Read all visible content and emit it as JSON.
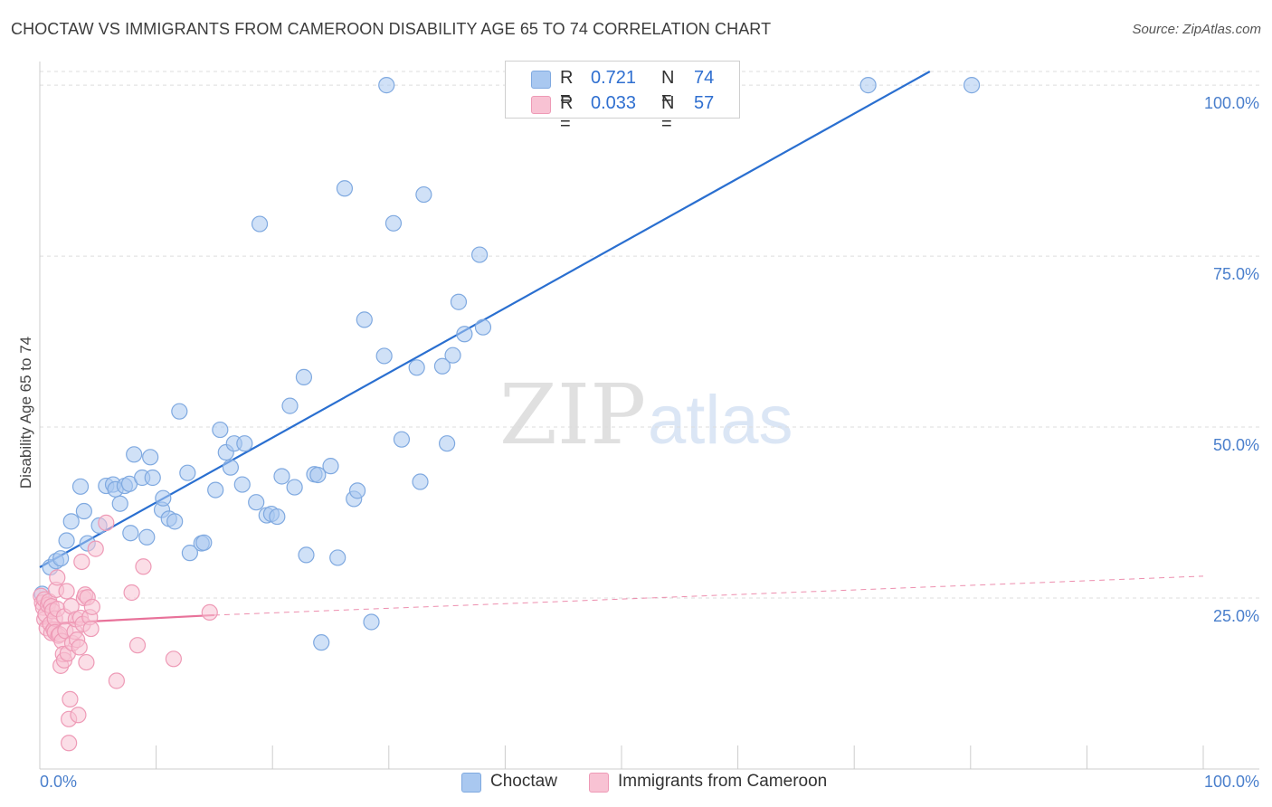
{
  "title": "CHOCTAW VS IMMIGRANTS FROM CAMEROON DISABILITY AGE 65 TO 74 CORRELATION CHART",
  "source": "Source: ZipAtlas.com",
  "watermark": {
    "part1": "ZIP",
    "part2": "atlas"
  },
  "legend": {
    "r_label": "R =",
    "n_label": "N =",
    "series": [
      {
        "name": "Choctaw",
        "r": "0.721",
        "n": "74",
        "fill": "#a9c8f0",
        "stroke": "#7fa9e0"
      },
      {
        "name": "Immigrants from Cameroon",
        "r": "0.033",
        "n": "57",
        "fill": "#f8c2d3",
        "stroke": "#ee9ab6"
      }
    ]
  },
  "colors": {
    "blue_line": "#2a6fd0",
    "pink_line": "#e8729a",
    "tick_text": "#4a7fcc",
    "grid": "#dddddd"
  },
  "chart_data": {
    "type": "scatter",
    "title": "CHOCTAW VS IMMIGRANTS FROM CAMEROON DISABILITY AGE 65 TO 74 CORRELATION CHART",
    "ylabel": "Disability Age 65 to 74",
    "xlabel": "",
    "xlim": [
      0,
      100
    ],
    "ylim": [
      0,
      102
    ],
    "x_tick_labels": [
      "0.0%",
      "100.0%"
    ],
    "y_ticks": [
      25,
      50,
      75,
      100
    ],
    "y_tick_labels": [
      "25.0%",
      "50.0%",
      "75.0%",
      "100.0%"
    ],
    "series": [
      {
        "name": "Choctaw",
        "trend": {
          "x0": 0,
          "y0": 29.5,
          "x1": 76.5,
          "y1": 102,
          "dashed_extension": false
        },
        "points": [
          [
            0.2,
            25.6
          ],
          [
            0.9,
            29.5
          ],
          [
            1.4,
            30.4
          ],
          [
            1.8,
            30.8
          ],
          [
            2.3,
            33.4
          ],
          [
            2.7,
            36.2
          ],
          [
            3.5,
            41.3
          ],
          [
            3.8,
            37.7
          ],
          [
            4.1,
            33.0
          ],
          [
            5.1,
            35.6
          ],
          [
            5.7,
            41.4
          ],
          [
            6.3,
            41.6
          ],
          [
            6.5,
            40.9
          ],
          [
            6.9,
            38.8
          ],
          [
            7.3,
            41.4
          ],
          [
            7.7,
            41.7
          ],
          [
            7.8,
            34.5
          ],
          [
            8.1,
            46.0
          ],
          [
            8.8,
            42.6
          ],
          [
            9.2,
            33.9
          ],
          [
            9.5,
            45.6
          ],
          [
            9.7,
            42.6
          ],
          [
            10.5,
            37.9
          ],
          [
            10.6,
            39.6
          ],
          [
            11.1,
            36.6
          ],
          [
            11.6,
            36.2
          ],
          [
            12.0,
            52.3
          ],
          [
            12.7,
            43.3
          ],
          [
            12.9,
            31.6
          ],
          [
            13.9,
            33.0
          ],
          [
            14.1,
            33.1
          ],
          [
            15.1,
            40.8
          ],
          [
            15.5,
            49.6
          ],
          [
            16.0,
            46.3
          ],
          [
            16.4,
            44.1
          ],
          [
            16.7,
            47.6
          ],
          [
            17.4,
            41.6
          ],
          [
            17.6,
            47.6
          ],
          [
            18.6,
            39.0
          ],
          [
            18.9,
            79.7
          ],
          [
            19.5,
            37.1
          ],
          [
            19.9,
            37.3
          ],
          [
            20.4,
            36.9
          ],
          [
            20.8,
            42.8
          ],
          [
            21.5,
            53.1
          ],
          [
            21.9,
            41.2
          ],
          [
            22.7,
            57.3
          ],
          [
            22.9,
            31.3
          ],
          [
            23.6,
            43.1
          ],
          [
            23.9,
            43.0
          ],
          [
            25.0,
            44.3
          ],
          [
            25.6,
            30.9
          ],
          [
            26.2,
            84.9
          ],
          [
            27.0,
            39.5
          ],
          [
            27.3,
            40.7
          ],
          [
            27.9,
            65.7
          ],
          [
            28.5,
            21.5
          ],
          [
            29.6,
            60.4
          ],
          [
            29.8,
            100.0
          ],
          [
            30.4,
            79.8
          ],
          [
            31.1,
            48.2
          ],
          [
            32.4,
            58.7
          ],
          [
            32.7,
            42.0
          ],
          [
            33.0,
            84.0
          ],
          [
            34.6,
            58.9
          ],
          [
            35.0,
            47.6
          ],
          [
            35.5,
            60.5
          ],
          [
            36.0,
            68.3
          ],
          [
            36.5,
            63.6
          ],
          [
            37.8,
            75.2
          ],
          [
            38.1,
            64.6
          ],
          [
            71.2,
            100.0
          ],
          [
            80.1,
            100.0
          ],
          [
            24.2,
            18.5
          ]
        ]
      },
      {
        "name": "Immigrants from Cameroon",
        "trend": {
          "x0": 0,
          "y0": 21.2,
          "x1": 15.0,
          "y1": 22.5,
          "dashed_extension": true,
          "x_end": 100,
          "y_end": 28.2
        },
        "points": [
          [
            0.1,
            25.3
          ],
          [
            0.2,
            24.3
          ],
          [
            0.3,
            23.6
          ],
          [
            0.4,
            24.8
          ],
          [
            0.4,
            21.9
          ],
          [
            0.5,
            22.6
          ],
          [
            0.6,
            20.6
          ],
          [
            0.7,
            24.0
          ],
          [
            0.8,
            24.5
          ],
          [
            0.9,
            21.2
          ],
          [
            1.0,
            19.9
          ],
          [
            1.0,
            23.8
          ],
          [
            1.1,
            23.1
          ],
          [
            1.2,
            20.4
          ],
          [
            1.3,
            22.0
          ],
          [
            1.3,
            20.0
          ],
          [
            1.4,
            26.2
          ],
          [
            1.5,
            23.4
          ],
          [
            1.5,
            28.0
          ],
          [
            1.6,
            19.5
          ],
          [
            1.7,
            19.7
          ],
          [
            1.8,
            15.1
          ],
          [
            1.9,
            18.7
          ],
          [
            2.0,
            16.8
          ],
          [
            2.1,
            22.3
          ],
          [
            2.1,
            15.9
          ],
          [
            2.2,
            20.2
          ],
          [
            2.3,
            26.0
          ],
          [
            2.4,
            16.9
          ],
          [
            2.5,
            3.8
          ],
          [
            2.5,
            7.3
          ],
          [
            2.6,
            10.2
          ],
          [
            2.7,
            23.8
          ],
          [
            2.8,
            18.4
          ],
          [
            3.0,
            20.1
          ],
          [
            3.1,
            21.9
          ],
          [
            3.2,
            18.9
          ],
          [
            3.3,
            7.9
          ],
          [
            3.4,
            17.8
          ],
          [
            3.5,
            22.1
          ],
          [
            3.6,
            30.3
          ],
          [
            3.7,
            21.2
          ],
          [
            3.8,
            25.0
          ],
          [
            3.9,
            25.5
          ],
          [
            4.0,
            15.6
          ],
          [
            4.1,
            25.1
          ],
          [
            4.3,
            22.2
          ],
          [
            4.4,
            20.5
          ],
          [
            4.5,
            23.7
          ],
          [
            4.8,
            32.2
          ],
          [
            5.7,
            36.0
          ],
          [
            6.6,
            12.9
          ],
          [
            7.9,
            25.8
          ],
          [
            8.4,
            18.1
          ],
          [
            8.9,
            29.6
          ],
          [
            11.5,
            16.1
          ],
          [
            14.6,
            22.9
          ]
        ]
      }
    ]
  }
}
